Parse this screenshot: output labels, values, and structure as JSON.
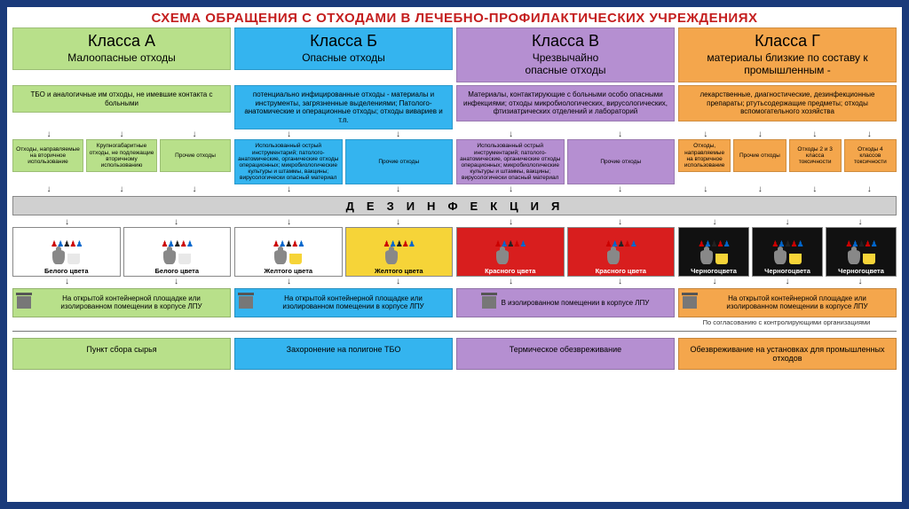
{
  "title": "СХЕМА ОБРАЩЕНИЯ С ОТХОДАМИ В ЛЕЧЕБНО-ПРОФИЛАКТИЧЕСКИХ УЧРЕЖДЕНИЯХ",
  "title_color": "#c41e1e",
  "classes": [
    {
      "key": "A",
      "name": "Класса А",
      "sub": "Малоопасные отходы",
      "desc": "ТБО и аналогичные им отходы, не имевшие контакта с больными",
      "bg": "#b8e08a",
      "subboxes": [
        "Отходы, направляемые на вторичное использование",
        "Крупногабаритные отходы, не подлежащие вторичному использованию",
        "Прочие отходы"
      ],
      "bins": [
        {
          "bg": "#ffffff",
          "bucket": "#e8e8e8",
          "label": "Белого цвета"
        },
        {
          "bg": "#ffffff",
          "bucket": "#e8e8e8",
          "label": "Белого цвета"
        }
      ],
      "container_bg": "#b8e08a",
      "container": "На открытой контейнерной площадке или изолированном помещении в корпусе ЛПУ",
      "footer_bg": "#b8e08a",
      "footer": "Пункт сбора сырья"
    },
    {
      "key": "B",
      "name": "Класса Б",
      "sub": "Опасные отходы",
      "desc": "потенциально инфицированные отходы - материалы и инструменты, загрязненные выделениями; Патолого-анатомические и операционные отходы; отходы вивариев и т.п.",
      "bg": "#34b4ef",
      "subboxes": [
        "Использованный острый инструментарий; патолого-анатомические, органические отходы операционных; микробиологические культуры и штаммы, вакцины; вирусологически опасный материал",
        "Прочие отходы"
      ],
      "bins": [
        {
          "bg": "#ffffff",
          "bucket": "#f6d438",
          "label": "Желтого цвета"
        },
        {
          "bg": "#f6d438",
          "bucket": "#f6d438",
          "label": "Желтого цвета"
        }
      ],
      "container_bg": "#34b4ef",
      "container": "На открытой контейнерной площадке или изолированном помещении в корпусе ЛПУ",
      "footer_bg": "#34b4ef",
      "footer": "Захоронение на полигоне ТБО"
    },
    {
      "key": "V",
      "name": "Класса В",
      "sub": "Чрезвычайно\nопасные отходы",
      "desc": "Материалы, контактирующие с больными особо опасными инфекциями; отходы микробиологических, вирусологических, фтизиатрических отделений и лабораторий",
      "bg": "#b58fd1",
      "subboxes": [
        "Использованный острый инструментарий; патолого-анатомические, органические отходы операционных; микробиологические культуры и штаммы, вакцины; вирусологически опасный материал",
        "Прочие отходы"
      ],
      "bins": [
        {
          "bg": "#d81e1e",
          "bucket": "#d81e1e",
          "label": "Красного цвета",
          "label_color": "#fff"
        },
        {
          "bg": "#d81e1e",
          "bucket": "#d81e1e",
          "label": "Красного цвета",
          "label_color": "#fff"
        }
      ],
      "container_bg": "#b58fd1",
      "container": "В изолированном помещении в корпусе ЛПУ",
      "footer_bg": "#b58fd1",
      "footer": "Термическое обезвреживание"
    },
    {
      "key": "G",
      "name": "Класса Г",
      "sub": "материалы близкие по составу к промышленным -",
      "desc": "лекарственные, диагностические, дезинфекционные препараты; ртутьсодержащие предметы; отходы вспомогательного хозяйства",
      "bg": "#f4a64c",
      "subboxes": [
        "Отходы, направляемые на вторичное использование",
        "Прочие отходы",
        "Отходы 2 и 3 класса токсичности",
        "Отходы 4 классов токсичности"
      ],
      "bins": [
        {
          "bg": "#111",
          "bucket": "#f6d438",
          "label": "Черногоцвета",
          "label_color": "#fff"
        },
        {
          "bg": "#111",
          "bucket": "#f6d438",
          "label": "Черногоцвета",
          "label_color": "#fff"
        },
        {
          "bg": "#111",
          "bucket": "#f6d438",
          "label": "Черногоцвета",
          "label_color": "#fff"
        }
      ],
      "container_bg": "#f4a64c",
      "container": "На открытой контейнерной площадке или изолированном помещении в корпусе ЛПУ",
      "note": "По согласованию с контролирующими организациями",
      "footer_bg": "#f4a64c",
      "footer": "Обезвреживание на установках для промышленных отходов"
    }
  ],
  "disinfection": "ДЕЗИНФЕКЦИЯ"
}
